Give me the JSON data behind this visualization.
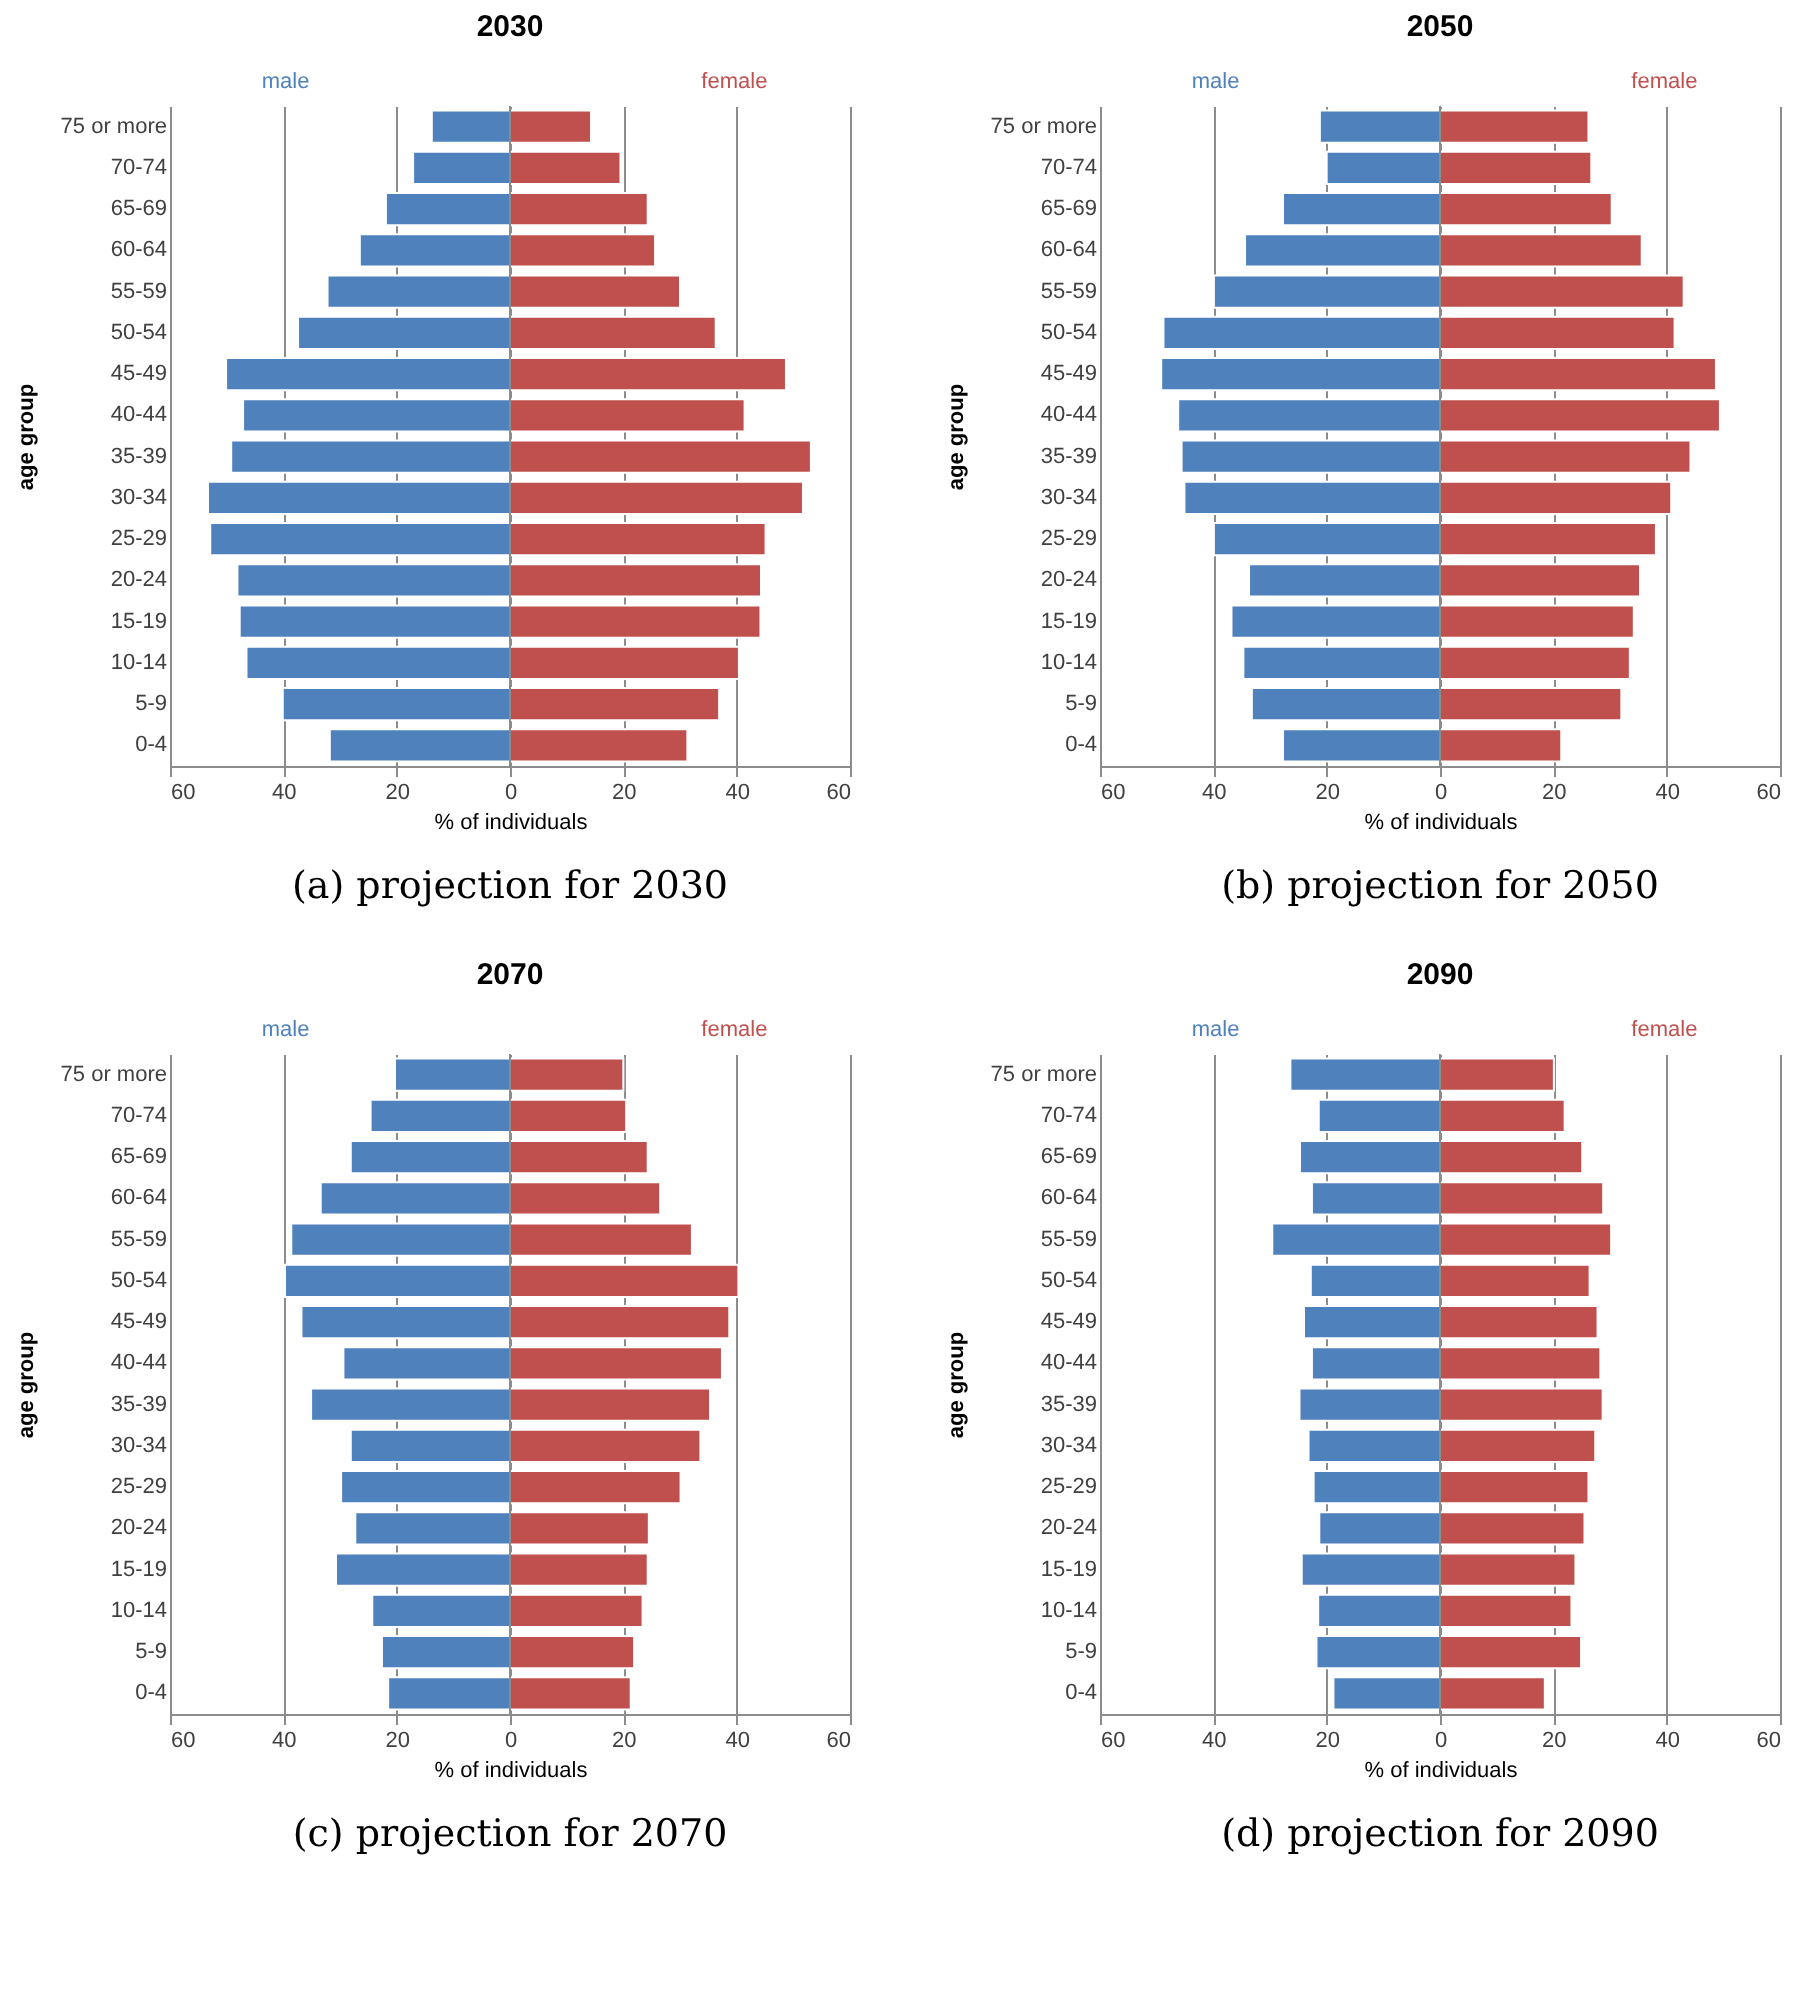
{
  "chart_data": [
    {
      "type": "bar",
      "orientation": "horizontal",
      "stacked": true,
      "title": "2030",
      "xlabel": "% of individuals",
      "ylabel": "age group",
      "grid": "x",
      "categories": [
        "75 or more",
        "70-74",
        "65-69",
        "60-64",
        "55-59",
        "50-54",
        "45-49",
        "40-44",
        "35-39",
        "30-34",
        "25-29",
        "20-24",
        "15-19",
        "10-14",
        "5-9",
        "0-4"
      ],
      "series": [
        {
          "name": "male",
          "color": "#4f81bd",
          "values": [
            -13.8,
            -17.1,
            -21.9,
            -26.5,
            -32.2,
            -37.4,
            -50.1,
            -47.1,
            -49.2,
            -53.3,
            -52.9,
            -48.1,
            -47.7,
            -46.5,
            -40.1,
            -31.8
          ]
        },
        {
          "name": "female",
          "color": "#c0504d",
          "values": [
            14.3,
            19.5,
            24.3,
            25.6,
            30.0,
            36.3,
            48.7,
            41.4,
            53.1,
            51.7,
            45.1,
            44.3,
            44.2,
            40.4,
            36.9,
            31.3
          ]
        }
      ],
      "xlim": [
        -60,
        60
      ],
      "xticks": [
        {
          "value": -60,
          "label": "60"
        },
        {
          "value": -40,
          "label": "40"
        },
        {
          "value": -20,
          "label": "20"
        },
        0,
        20,
        40,
        60
      ],
      "annotations": [
        "(a) projection for 2030"
      ]
    },
    {
      "type": "bar",
      "orientation": "horizontal",
      "stacked": true,
      "title": "2050",
      "xlabel": "% of individuals",
      "ylabel": "age group",
      "grid": "x",
      "categories": [
        "75 or more",
        "70-74",
        "65-69",
        "60-64",
        "55-59",
        "50-54",
        "45-49",
        "40-44",
        "35-39",
        "30-34",
        "25-29",
        "20-24",
        "15-19",
        "10-14",
        "5-9",
        "0-4"
      ],
      "series": [
        {
          "name": "male",
          "color": "#4f81bd",
          "values": [
            -21.2,
            -20.0,
            -27.7,
            -34.4,
            -39.9,
            -48.8,
            -49.2,
            -46.2,
            -45.6,
            -45.1,
            -39.9,
            -33.7,
            -36.8,
            -34.7,
            -33.2,
            -27.7
          ]
        },
        {
          "name": "female",
          "color": "#c0504d",
          "values": [
            26.2,
            26.7,
            30.3,
            35.6,
            43.0,
            41.4,
            48.7,
            49.4,
            44.2,
            40.8,
            38.1,
            35.3,
            34.2,
            33.5,
            32.0,
            21.4
          ]
        }
      ],
      "xlim": [
        -60,
        60
      ],
      "xticks": [
        {
          "value": -60,
          "label": "60"
        },
        {
          "value": -40,
          "label": "40"
        },
        {
          "value": -20,
          "label": "20"
        },
        0,
        20,
        40,
        60
      ],
      "annotations": [
        "(b) projection for 2050"
      ]
    },
    {
      "type": "bar",
      "orientation": "horizontal",
      "stacked": true,
      "title": "2070",
      "xlabel": "% of individuals",
      "ylabel": "age group",
      "grid": "x",
      "categories": [
        "75 or more",
        "70-74",
        "65-69",
        "60-64",
        "55-59",
        "50-54",
        "45-49",
        "40-44",
        "35-39",
        "30-34",
        "25-29",
        "20-24",
        "15-19",
        "10-14",
        "5-9",
        "0-4"
      ],
      "series": [
        {
          "name": "male",
          "color": "#4f81bd",
          "values": [
            -20.3,
            -24.6,
            -28.1,
            -33.4,
            -38.6,
            -39.7,
            -36.8,
            -29.4,
            -35.1,
            -28.1,
            -29.8,
            -27.3,
            -30.7,
            -24.3,
            -22.6,
            -21.5
          ]
        },
        {
          "name": "female",
          "color": "#c0504d",
          "values": [
            20.0,
            20.5,
            24.3,
            26.5,
            32.1,
            40.3,
            38.7,
            37.4,
            35.3,
            33.6,
            30.1,
            24.5,
            24.3,
            23.4,
            21.9,
            21.3
          ]
        }
      ],
      "xlim": [
        -60,
        60
      ],
      "xticks": [
        {
          "value": -60,
          "label": "60"
        },
        {
          "value": -40,
          "label": "40"
        },
        {
          "value": -20,
          "label": "20"
        },
        0,
        20,
        40,
        60
      ],
      "annotations": [
        "(c) projection for 2070"
      ]
    },
    {
      "type": "bar",
      "orientation": "horizontal",
      "stacked": true,
      "title": "2090",
      "xlabel": "% of individuals",
      "ylabel": "age group",
      "grid": "x",
      "categories": [
        "75 or more",
        "70-74",
        "65-69",
        "60-64",
        "55-59",
        "50-54",
        "45-49",
        "40-44",
        "35-39",
        "30-34",
        "25-29",
        "20-24",
        "15-19",
        "10-14",
        "5-9",
        "0-4"
      ],
      "series": [
        {
          "name": "male",
          "color": "#4f81bd",
          "values": [
            -26.4,
            -21.4,
            -24.7,
            -22.6,
            -29.6,
            -22.8,
            -24.0,
            -22.6,
            -24.8,
            -23.2,
            -22.3,
            -21.3,
            -24.4,
            -21.5,
            -21.8,
            -18.8
          ]
        },
        {
          "name": "female",
          "color": "#c0504d",
          "values": [
            20.1,
            22.0,
            25.1,
            28.8,
            30.2,
            26.4,
            27.8,
            28.3,
            28.7,
            27.4,
            26.2,
            25.5,
            23.9,
            23.2,
            24.9,
            18.5
          ]
        }
      ],
      "xlim": [
        -60,
        60
      ],
      "xticks": [
        {
          "value": -60,
          "label": "60"
        },
        {
          "value": -40,
          "label": "40"
        },
        {
          "value": -20,
          "label": "20"
        },
        0,
        20,
        40,
        60
      ],
      "annotations": [
        "(d) projection for 2090"
      ]
    }
  ]
}
